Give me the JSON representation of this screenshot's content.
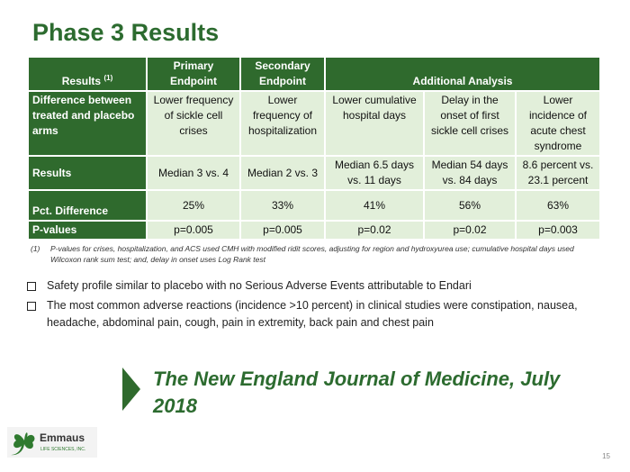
{
  "title": "Phase 3 Results",
  "table": {
    "header": {
      "c0": "Results",
      "c0_sup": "(1)",
      "c1": "Primary Endpoint",
      "c2": "Secondary Endpoint",
      "c3": "Additional Analysis"
    },
    "rows": [
      {
        "label": "Difference between treated and placebo arms",
        "cells": [
          "Lower frequency of sickle cell crises",
          "Lower frequency of hospitalization",
          "Lower cumulative hospital days",
          "Delay in the onset of first sickle cell crises",
          "Lower incidence of acute chest syndrome"
        ]
      },
      {
        "label": "Results",
        "cells": [
          "Median 3 vs. 4",
          "Median 2 vs. 3",
          "Median 6.5 days vs. 11 days",
          "Median 54 days vs. 84 days",
          "8.6 percent vs. 23.1 percent"
        ]
      },
      {
        "label": "Pct. Difference",
        "cells": [
          "25%",
          "33%",
          "41%",
          "56%",
          "63%"
        ]
      },
      {
        "label": "P-values",
        "cells": [
          "p=0.005",
          "p=0.005",
          "p=0.02",
          "p=0.02",
          "p=0.003"
        ]
      }
    ]
  },
  "footnote": {
    "marker": "(1)",
    "text": "P-values for  crises, hospitalization, and ACS used CMH with modified ridit scores, adjusting for region and hydroxyurea use; cumulative hospital days used Wilcoxon rank sum test; and, delay in onset uses Log Rank test"
  },
  "bullets": [
    "Safety profile similar to placebo with no Serious Adverse Events attributable to Endari",
    "The most common adverse reactions (incidence >10 percent) in clinical studies were constipation, nausea, headache, abdominal pain, cough, pain in extremity, back pain and chest pain"
  ],
  "callout": "The New England Journal of Medicine, July 2018",
  "logo": {
    "name": "Emmaus",
    "sub": "LIFE SCIENCES, INC."
  },
  "page_number": "15"
}
